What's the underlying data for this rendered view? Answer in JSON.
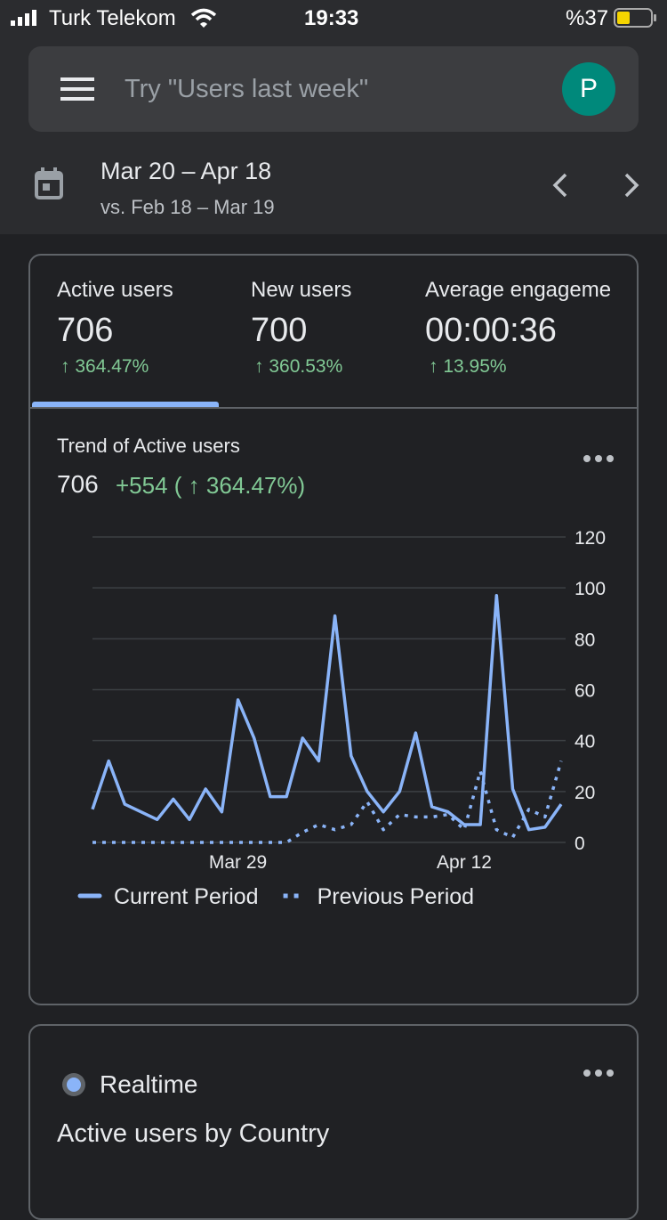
{
  "status_bar": {
    "carrier": "Turk Telekom",
    "time": "19:33",
    "battery": "%37"
  },
  "search": {
    "placeholder": "Try \"Users last week\"",
    "avatar": "P"
  },
  "date_range": {
    "range": "Mar 20 – Apr 18",
    "compare": "vs. Feb 18 – Mar 19"
  },
  "metrics": [
    {
      "label": "Active users",
      "value": "706",
      "change": "↑ 364.47%"
    },
    {
      "label": "New users",
      "value": "700",
      "change": "↑ 360.53%"
    },
    {
      "label": "Average engageme",
      "value": "00:00:36",
      "change": "↑ 13.95%"
    }
  ],
  "trend": {
    "title": "Trend of Active users",
    "total": "706",
    "delta": "+554 ( ↑ 364.47%)"
  },
  "chart_data": {
    "type": "line",
    "categories": [
      null,
      null,
      null,
      null,
      null,
      null,
      null,
      null,
      null,
      "Mar 29",
      null,
      null,
      null,
      null,
      null,
      null,
      null,
      null,
      null,
      null,
      null,
      null,
      null,
      "Apr 12",
      null,
      null,
      null,
      null,
      null,
      null
    ],
    "series": [
      {
        "name": "Current Period",
        "color": "#8ab4f8",
        "dashed": false,
        "values": [
          13,
          32,
          15,
          12,
          9,
          17,
          9,
          21,
          12,
          56,
          41,
          18,
          18,
          41,
          32,
          89,
          34,
          20,
          12,
          20,
          43,
          14,
          12,
          7,
          7,
          97,
          21,
          5,
          6,
          15
        ]
      },
      {
        "name": "Previous Period",
        "color": "#8ab4f8",
        "dashed": true,
        "values": [
          0,
          0,
          0,
          0,
          0,
          0,
          0,
          0,
          0,
          0,
          0,
          0,
          0,
          4,
          7,
          5,
          7,
          16,
          5,
          11,
          10,
          10,
          11,
          5,
          28,
          5,
          2,
          13,
          10,
          32
        ]
      }
    ],
    "ylim": [
      0,
      120
    ],
    "yticks": [
      0,
      20,
      40,
      60,
      80,
      100,
      120
    ],
    "grid": true
  },
  "realtime": {
    "label": "Realtime",
    "title": "Active users by Country"
  }
}
